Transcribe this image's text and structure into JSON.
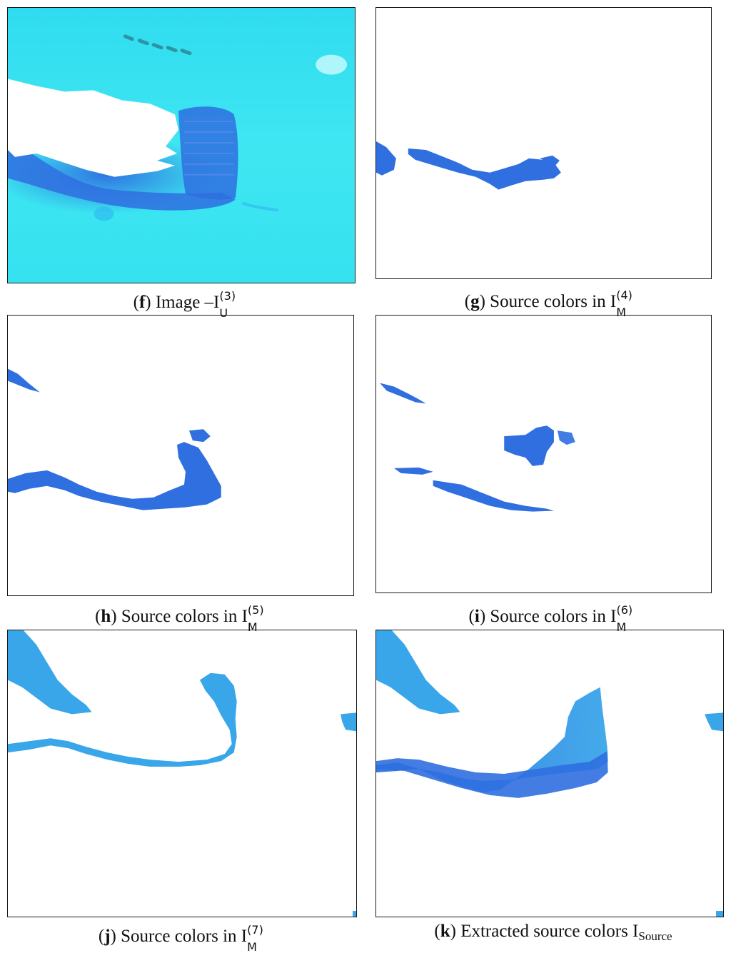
{
  "figures": [
    {
      "id": "f",
      "letter": "f",
      "text": " Image –I",
      "sup": "(3)",
      "sub": "U"
    },
    {
      "id": "g",
      "letter": "g",
      "text": " Source colors in I",
      "sup": "(4)",
      "sub": "M"
    },
    {
      "id": "h",
      "letter": "h",
      "text": " Source colors in I",
      "sup": "(5)",
      "sub": "M"
    },
    {
      "id": "i",
      "letter": "i",
      "text": " Source colors in I",
      "sup": "(6)",
      "sub": "M"
    },
    {
      "id": "j",
      "letter": "j",
      "text": " Source colors in I",
      "sup": "(7)",
      "sub": "M"
    },
    {
      "id": "k",
      "letter": "k",
      "text": " Extracted source colors I",
      "sub": "Source"
    }
  ],
  "colors": {
    "water": "#33e3f0",
    "deep_blue": "#2f6fe0",
    "mid_blue": "#3aa6ea",
    "frame": "#1a1a1a"
  }
}
